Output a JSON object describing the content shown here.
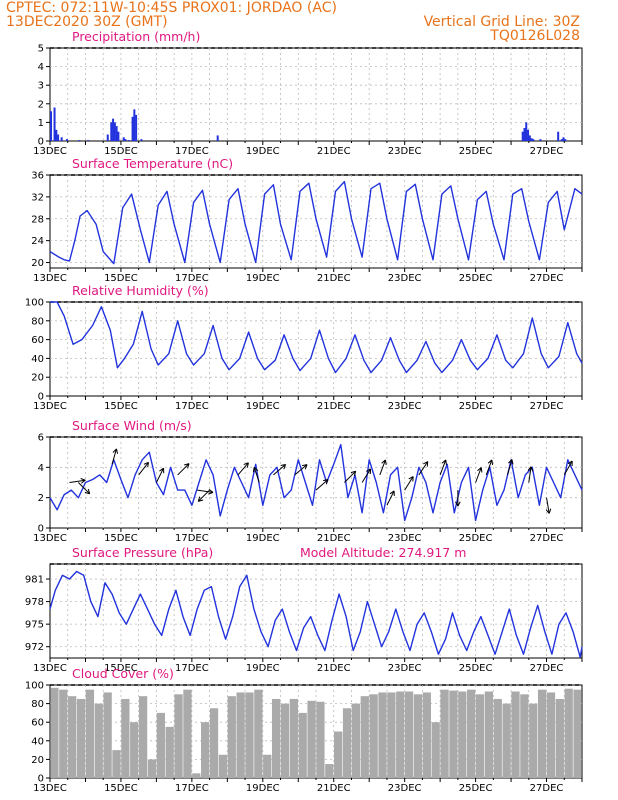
{
  "header": {
    "left_line1": "CPTEC:   072:11W-10:45S   PROX01: JORDAO (AC)",
    "left_line2": "13DEC2020 30Z (GMT)",
    "right_line1": "Vertical Grid Line: 30Z",
    "right_line2": "TQ0126L028"
  },
  "colors": {
    "header": "#e8731a",
    "panel_title": "#e0187f",
    "series": "#2233dd",
    "cloud": "#aaaaaa",
    "wind_arrow": "#000000"
  },
  "chart_data": [
    {
      "type": "bar",
      "title": "Precipitation (mm/h)",
      "ylim": [
        0,
        5
      ],
      "yticks": [
        "0",
        "1",
        "2",
        "3",
        "4",
        "5"
      ],
      "xlim_days": [
        13,
        28
      ],
      "xticks": [
        "13DEC",
        "15DEC",
        "17DEC",
        "19DEC",
        "21DEC",
        "23DEC",
        "25DEC",
        "27DEC"
      ],
      "x_day": [
        13.0,
        13.1,
        13.15,
        13.2,
        13.3,
        13.45,
        13.8,
        14.05,
        14.6,
        14.7,
        14.75,
        14.8,
        14.85,
        14.9,
        15.05,
        15.1,
        15.2,
        15.3,
        15.35,
        15.4,
        15.55,
        17.7,
        26.3,
        26.35,
        26.4,
        26.45,
        26.5,
        26.55,
        26.6,
        26.8,
        27.3,
        27.4,
        27.45,
        27.5
      ],
      "values": [
        1.6,
        1.8,
        0.6,
        0.35,
        0.2,
        0.1,
        0.05,
        0.05,
        0.35,
        1.0,
        1.2,
        1.0,
        0.8,
        0.5,
        0.2,
        0.1,
        0.05,
        1.3,
        1.7,
        1.4,
        0.1,
        0.3,
        0.5,
        0.7,
        1.0,
        0.6,
        0.3,
        0.15,
        0.1,
        0.1,
        0.5,
        0.1,
        0.2,
        0.1
      ]
    },
    {
      "type": "line",
      "title": "Surface Temperature (nC)",
      "ylim": [
        19,
        36
      ],
      "yticks": [
        "20",
        "24",
        "28",
        "32",
        "36"
      ],
      "xlim_days": [
        13,
        28
      ],
      "xticks": [
        "13DEC",
        "15DEC",
        "17DEC",
        "19DEC",
        "21DEC",
        "23DEC",
        "25DEC",
        "27DEC"
      ],
      "x_day": [
        13.0,
        13.25,
        13.4,
        13.55,
        13.7,
        13.85,
        14.05,
        14.3,
        14.5,
        14.8,
        15.05,
        15.3,
        15.55,
        15.8,
        16.05,
        16.3,
        16.5,
        16.8,
        17.05,
        17.3,
        17.5,
        17.8,
        18.05,
        18.3,
        18.5,
        18.8,
        19.05,
        19.3,
        19.5,
        19.8,
        20.05,
        20.3,
        20.5,
        20.8,
        21.05,
        21.3,
        21.5,
        21.8,
        22.05,
        22.3,
        22.5,
        22.8,
        23.05,
        23.3,
        23.5,
        23.8,
        24.05,
        24.3,
        24.5,
        24.8,
        25.05,
        25.3,
        25.5,
        25.8,
        26.05,
        26.3,
        26.5,
        26.8,
        27.05,
        27.3,
        27.5,
        27.8,
        28.0
      ],
      "values": [
        22.0,
        21.0,
        20.5,
        20.3,
        24.0,
        28.5,
        29.5,
        27.0,
        22.0,
        19.8,
        30.0,
        32.5,
        26.0,
        20.0,
        30.5,
        33.0,
        27.0,
        20.0,
        31.0,
        33.2,
        27.0,
        20.0,
        31.5,
        33.5,
        27.0,
        20.0,
        32.5,
        34.2,
        27.0,
        20.5,
        33.0,
        34.5,
        28.0,
        21.0,
        33.0,
        34.8,
        28.0,
        21.0,
        33.5,
        34.5,
        28.0,
        20.5,
        33.0,
        34.3,
        28.0,
        20.5,
        32.5,
        34.0,
        28.0,
        20.5,
        31.5,
        33.0,
        27.0,
        20.5,
        32.5,
        33.5,
        27.5,
        20.5,
        31.0,
        33.0,
        26.0,
        33.5,
        32.5
      ]
    },
    {
      "type": "line",
      "title": "Relative Humidity (%)",
      "ylim": [
        0,
        100
      ],
      "yticks": [
        "0",
        "20",
        "40",
        "60",
        "80",
        "100"
      ],
      "xlim_days": [
        13,
        28
      ],
      "xticks": [
        "13DEC",
        "15DEC",
        "17DEC",
        "19DEC",
        "21DEC",
        "23DEC",
        "25DEC",
        "27DEC"
      ],
      "x_day": [
        13.0,
        13.2,
        13.4,
        13.65,
        13.9,
        14.2,
        14.45,
        14.7,
        14.9,
        15.1,
        15.35,
        15.6,
        15.85,
        16.05,
        16.35,
        16.6,
        16.85,
        17.05,
        17.35,
        17.6,
        17.85,
        18.05,
        18.35,
        18.6,
        18.85,
        19.05,
        19.35,
        19.6,
        19.85,
        20.05,
        20.35,
        20.6,
        20.85,
        21.05,
        21.35,
        21.6,
        21.85,
        22.05,
        22.35,
        22.6,
        22.85,
        23.05,
        23.35,
        23.6,
        23.85,
        24.05,
        24.35,
        24.6,
        24.85,
        25.05,
        25.35,
        25.6,
        25.85,
        26.05,
        26.35,
        26.6,
        26.85,
        27.05,
        27.35,
        27.6,
        27.85,
        28.0
      ],
      "values": [
        100,
        100,
        85,
        55,
        60,
        75,
        95,
        70,
        30,
        40,
        55,
        90,
        50,
        33,
        45,
        80,
        45,
        33,
        45,
        75,
        40,
        28,
        40,
        68,
        40,
        28,
        38,
        65,
        40,
        27,
        40,
        70,
        40,
        25,
        40,
        65,
        38,
        25,
        38,
        62,
        38,
        25,
        38,
        58,
        35,
        25,
        38,
        60,
        38,
        28,
        40,
        65,
        38,
        30,
        45,
        83,
        45,
        30,
        42,
        78,
        45,
        35
      ]
    },
    {
      "type": "line",
      "title": "Surface Wind (m/s)",
      "ylim": [
        0,
        6
      ],
      "yticks": [
        "0",
        "2",
        "4",
        "6"
      ],
      "xlim_days": [
        13,
        28
      ],
      "xticks": [
        "13DEC",
        "15DEC",
        "17DEC",
        "19DEC",
        "21DEC",
        "23DEC",
        "25DEC",
        "27DEC"
      ],
      "x_day": [
        13.0,
        13.2,
        13.4,
        13.6,
        13.8,
        14.0,
        14.2,
        14.4,
        14.6,
        14.8,
        15.0,
        15.2,
        15.4,
        15.6,
        15.8,
        16.0,
        16.2,
        16.4,
        16.6,
        16.8,
        17.0,
        17.2,
        17.4,
        17.6,
        17.8,
        18.0,
        18.2,
        18.4,
        18.6,
        18.8,
        19.0,
        19.2,
        19.4,
        19.6,
        19.8,
        20.0,
        20.2,
        20.4,
        20.6,
        20.8,
        21.0,
        21.2,
        21.4,
        21.6,
        21.8,
        22.0,
        22.2,
        22.4,
        22.6,
        22.8,
        23.0,
        23.2,
        23.4,
        23.6,
        23.8,
        24.0,
        24.2,
        24.4,
        24.6,
        24.8,
        25.0,
        25.2,
        25.4,
        25.6,
        25.8,
        26.0,
        26.2,
        26.4,
        26.6,
        26.8,
        27.0,
        27.2,
        27.4,
        27.6,
        27.8,
        28.0
      ],
      "values": [
        2.0,
        1.2,
        2.2,
        2.5,
        2.0,
        3.0,
        3.2,
        3.5,
        3.0,
        4.5,
        3.2,
        2.0,
        3.5,
        4.5,
        5.0,
        3.0,
        2.2,
        4.0,
        2.5,
        2.5,
        1.5,
        3.0,
        4.5,
        3.5,
        0.8,
        2.5,
        4.0,
        3.0,
        2.0,
        4.2,
        1.5,
        3.5,
        4.0,
        2.0,
        2.5,
        4.5,
        3.0,
        1.5,
        4.5,
        3.0,
        4.2,
        5.5,
        2.0,
        3.5,
        1.0,
        4.5,
        3.0,
        1.0,
        3.5,
        4.0,
        0.5,
        2.0,
        4.0,
        3.0,
        1.0,
        3.0,
        4.2,
        1.0,
        3.0,
        4.0,
        0.5,
        2.5,
        4.0,
        1.5,
        2.5,
        4.5,
        2.0,
        3.5,
        4.0,
        1.5,
        4.0,
        3.0,
        2.0,
        4.5,
        3.5,
        2.5
      ]
    },
    {
      "type": "line",
      "title": "Surface Pressure (hPa)",
      "annotation": "Model Altitude: 274.917 m",
      "ylim": [
        970.5,
        983
      ],
      "yticks": [
        "972",
        "975",
        "978",
        "981"
      ],
      "xlim_days": [
        13,
        28
      ],
      "xticks": [
        "13DEC",
        "15DEC",
        "17DEC",
        "19DEC",
        "21DEC",
        "23DEC",
        "25DEC",
        "27DEC"
      ],
      "x_day": [
        13.0,
        13.15,
        13.35,
        13.55,
        13.75,
        13.95,
        14.15,
        14.35,
        14.55,
        14.75,
        14.95,
        15.15,
        15.35,
        15.55,
        15.75,
        15.95,
        16.15,
        16.35,
        16.55,
        16.75,
        16.95,
        17.15,
        17.35,
        17.55,
        17.75,
        17.95,
        18.15,
        18.35,
        18.55,
        18.75,
        18.95,
        19.15,
        19.35,
        19.55,
        19.75,
        19.95,
        20.15,
        20.35,
        20.55,
        20.75,
        20.95,
        21.15,
        21.35,
        21.55,
        21.75,
        21.95,
        22.15,
        22.35,
        22.55,
        22.75,
        22.95,
        23.15,
        23.35,
        23.55,
        23.75,
        23.95,
        24.15,
        24.35,
        24.55,
        24.75,
        24.95,
        25.15,
        25.35,
        25.55,
        25.75,
        25.95,
        26.15,
        26.35,
        26.55,
        26.75,
        26.95,
        27.15,
        27.35,
        27.55,
        27.75,
        27.95,
        28.0
      ],
      "values": [
        977.0,
        979.5,
        981.5,
        981.0,
        982.0,
        981.5,
        978.0,
        976.0,
        980.5,
        979.0,
        976.5,
        975.0,
        977.0,
        979.0,
        977.0,
        975.0,
        973.5,
        977.0,
        979.5,
        976.0,
        973.5,
        977.0,
        979.5,
        980.0,
        976.0,
        973.0,
        976.0,
        980.0,
        981.5,
        977.0,
        974.0,
        972.0,
        975.5,
        977.0,
        974.0,
        971.5,
        974.5,
        976.0,
        973.5,
        971.5,
        975.5,
        979.0,
        976.0,
        971.5,
        974.0,
        978.0,
        975.0,
        972.0,
        974.0,
        977.0,
        974.0,
        971.5,
        975.0,
        976.5,
        974.0,
        971.0,
        973.0,
        976.5,
        973.5,
        971.5,
        974.0,
        976.0,
        973.5,
        971.0,
        974.0,
        977.0,
        973.5,
        971.0,
        974.5,
        977.5,
        974.0,
        971.0,
        975.0,
        976.5,
        974.0,
        970.6,
        972.0
      ]
    },
    {
      "type": "bar",
      "title": "Cloud Cover (%)",
      "ylim": [
        0,
        100
      ],
      "yticks": [
        "0",
        "20",
        "40",
        "60",
        "80",
        "100"
      ],
      "xlim_days": [
        13,
        28
      ],
      "xticks": [
        "13DEC",
        "15DEC",
        "17DEC",
        "19DEC",
        "21DEC",
        "23DEC",
        "25DEC",
        "27DEC"
      ],
      "x_day": [
        13.0,
        13.25,
        13.5,
        13.75,
        14.0,
        14.25,
        14.5,
        14.75,
        15.0,
        15.25,
        15.5,
        15.75,
        16.0,
        16.25,
        16.5,
        16.75,
        17.0,
        17.25,
        17.5,
        17.75,
        18.0,
        18.25,
        18.5,
        18.75,
        19.0,
        19.25,
        19.5,
        19.75,
        20.0,
        20.25,
        20.5,
        20.75,
        21.0,
        21.25,
        21.5,
        21.75,
        22.0,
        22.25,
        22.5,
        22.75,
        23.0,
        23.25,
        23.5,
        23.75,
        24.0,
        24.25,
        24.5,
        24.75,
        25.0,
        25.25,
        25.5,
        25.75,
        26.0,
        26.25,
        26.5,
        26.75,
        27.0,
        27.25,
        27.5,
        27.75
      ],
      "values": [
        97,
        95,
        88,
        85,
        95,
        80,
        92,
        30,
        85,
        60,
        88,
        20,
        70,
        55,
        90,
        95,
        5,
        60,
        75,
        25,
        88,
        92,
        92,
        95,
        25,
        85,
        80,
        85,
        70,
        83,
        82,
        15,
        50,
        75,
        80,
        88,
        90,
        92,
        92,
        93,
        93,
        90,
        92,
        60,
        95,
        94,
        93,
        95,
        90,
        93,
        85,
        80,
        93,
        90,
        80,
        95,
        92,
        85,
        96,
        95
      ]
    }
  ]
}
